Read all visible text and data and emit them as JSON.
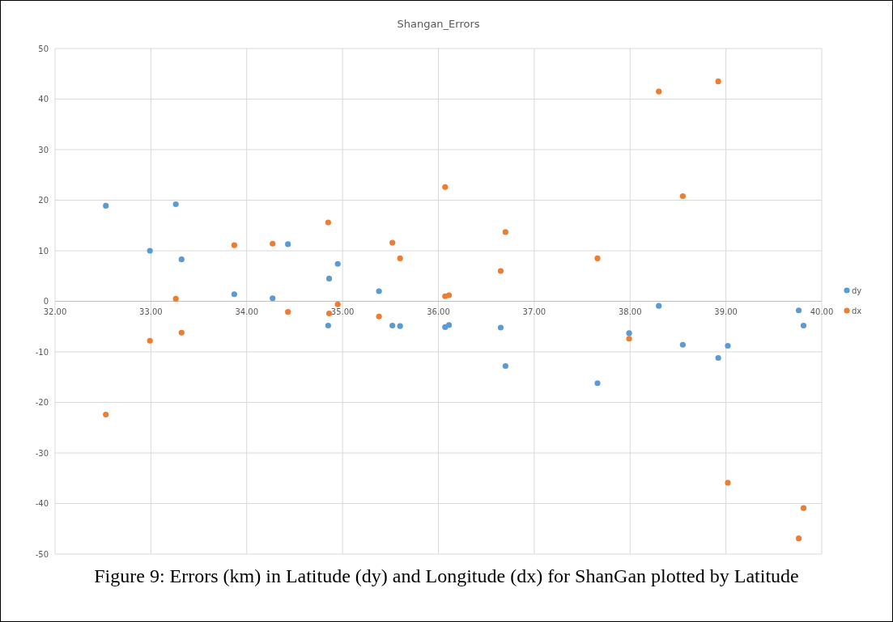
{
  "chart_data": {
    "type": "scatter",
    "title": "Shangan_Errors",
    "x": [
      32.53,
      32.99,
      33.26,
      33.32,
      33.87,
      34.27,
      34.43,
      34.85,
      34.86,
      34.95,
      35.38,
      35.52,
      35.6,
      36.07,
      36.11,
      36.65,
      36.7,
      37.66,
      37.99,
      38.3,
      38.55,
      38.92,
      39.02,
      39.76,
      39.81
    ],
    "series": [
      {
        "name": "dy",
        "color": "#5b9bd5",
        "values": [
          18.9,
          10.0,
          19.2,
          8.3,
          1.4,
          0.6,
          11.3,
          -4.8,
          4.5,
          7.4,
          2.0,
          -4.8,
          -4.9,
          -5.1,
          -4.7,
          -5.2,
          -12.8,
          -16.2,
          -6.3,
          -0.9,
          -8.6,
          -11.2,
          -8.8,
          -1.8,
          -4.8
        ]
      },
      {
        "name": "dx",
        "color": "#ed7d31",
        "x": [
          32.53,
          32.99,
          33.26,
          33.32,
          33.87,
          34.27,
          34.43,
          34.85,
          34.86,
          34.95,
          35.38,
          35.52,
          35.6,
          36.07,
          36.07,
          36.11,
          36.65,
          36.7,
          37.66,
          37.99,
          38.3,
          38.55,
          38.92,
          39.02,
          39.76,
          39.81
        ],
        "values": [
          -22.4,
          -7.8,
          0.5,
          -6.2,
          11.1,
          11.4,
          -2.1,
          15.6,
          -2.4,
          -0.6,
          -3.0,
          11.6,
          8.5,
          22.6,
          1.0,
          1.2,
          6.0,
          13.7,
          8.5,
          -7.4,
          41.5,
          20.8,
          43.5,
          -35.9,
          -46.9,
          -40.9
        ]
      }
    ],
    "xlim": [
      32,
      40
    ],
    "xticks": [
      {
        "value": 32,
        "label": "32.00"
      },
      {
        "value": 33,
        "label": "33.00"
      },
      {
        "value": 34,
        "label": "34.00"
      },
      {
        "value": 35,
        "label": "35.00"
      },
      {
        "value": 36,
        "label": "36.00"
      },
      {
        "value": 37,
        "label": "37.00"
      },
      {
        "value": 38,
        "label": "38.00"
      },
      {
        "value": 39,
        "label": "39.00"
      },
      {
        "value": 40,
        "label": "40.00"
      }
    ],
    "ylim": [
      -50,
      50
    ],
    "yticks": [
      -50,
      -40,
      -30,
      -20,
      -10,
      0,
      10,
      20,
      30,
      40,
      50
    ],
    "grid": true,
    "legend": "right",
    "marker": "circle",
    "annotations": [
      "Figure 9: Errors (km) in Latitude (dy) and Longitude (dx) for ShanGan plotted by Latitude"
    ]
  }
}
